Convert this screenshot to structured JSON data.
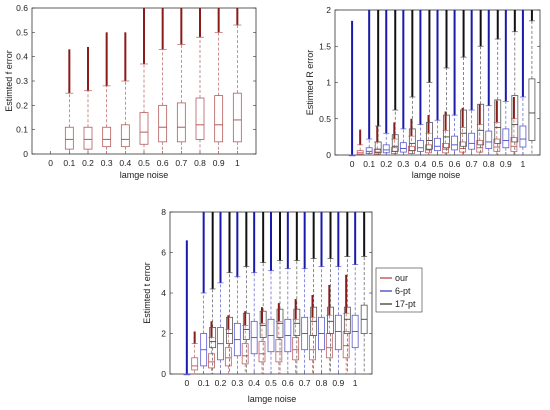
{
  "chart_data": [
    {
      "type": "boxplot",
      "xlabel": "lamge noise",
      "ylabel": "Estimted f error",
      "ylim": [
        0,
        0.6
      ],
      "yticks": [
        0,
        0.1,
        0.2,
        0.3,
        0.4,
        0.5,
        0.6
      ],
      "categories": [
        "0",
        "0.1",
        "0.2",
        "0.3",
        "0.4",
        "0.5",
        "0.6",
        "0.7",
        "0.8",
        "0.9",
        "1"
      ],
      "series": [
        {
          "color": "#b55a5a",
          "outlier_color": "#8b1a1a",
          "boxes": [
            {
              "x": "0.1",
              "q1": 0.02,
              "median": 0.06,
              "q3": 0.11,
              "whisker_low": 0,
              "whisker_high": 0.25,
              "outlier_max": 0.43
            },
            {
              "x": "0.2",
              "q1": 0.02,
              "median": 0.06,
              "q3": 0.11,
              "whisker_low": 0,
              "whisker_high": 0.26,
              "outlier_max": 0.44
            },
            {
              "x": "0.3",
              "q1": 0.03,
              "median": 0.06,
              "q3": 0.11,
              "whisker_low": 0,
              "whisker_high": 0.28,
              "outlier_max": 0.5
            },
            {
              "x": "0.4",
              "q1": 0.03,
              "median": 0.06,
              "q3": 0.12,
              "whisker_low": 0,
              "whisker_high": 0.3,
              "outlier_max": 0.5
            },
            {
              "x": "0.5",
              "q1": 0.04,
              "median": 0.09,
              "q3": 0.17,
              "whisker_low": 0,
              "whisker_high": 0.37,
              "outlier_max": 0.6
            },
            {
              "x": "0.6",
              "q1": 0.05,
              "median": 0.11,
              "q3": 0.2,
              "whisker_low": 0,
              "whisker_high": 0.43,
              "outlier_max": 0.6
            },
            {
              "x": "0.7",
              "q1": 0.05,
              "median": 0.11,
              "q3": 0.21,
              "whisker_low": 0,
              "whisker_high": 0.45,
              "outlier_max": 0.6
            },
            {
              "x": "0.8",
              "q1": 0.06,
              "median": 0.12,
              "q3": 0.23,
              "whisker_low": 0,
              "whisker_high": 0.48,
              "outlier_max": 0.6
            },
            {
              "x": "0.9",
              "q1": 0.05,
              "median": 0.12,
              "q3": 0.24,
              "whisker_low": 0,
              "whisker_high": 0.5,
              "outlier_max": 0.6
            },
            {
              "x": "1",
              "q1": 0.05,
              "median": 0.14,
              "q3": 0.25,
              "whisker_low": 0,
              "whisker_high": 0.53,
              "outlier_max": 0.6
            }
          ]
        }
      ]
    },
    {
      "type": "boxplot",
      "xlabel": "lamge noise",
      "ylabel": "Estimted R error",
      "ylim": [
        0,
        2
      ],
      "yticks": [
        0,
        0.5,
        1,
        1.5,
        2
      ],
      "categories": [
        "0",
        "0.1",
        "0.2",
        "0.3",
        "0.4",
        "0.5",
        "0.6",
        "0.7",
        "0.8",
        "0.9",
        "1"
      ],
      "series": [
        {
          "name": "our",
          "color": "#c06060",
          "outlier_color": "#8b1a1a",
          "boxes": [
            {
              "x": "0.1",
              "q1": 0.01,
              "median": 0.03,
              "q3": 0.06,
              "whisker_low": 0,
              "whisker_high": 0.14,
              "outlier_max": 0.35
            },
            {
              "x": "0.2",
              "q1": 0.01,
              "median": 0.04,
              "q3": 0.08,
              "whisker_low": 0,
              "whisker_high": 0.18,
              "outlier_max": 0.4
            },
            {
              "x": "0.3",
              "q1": 0.02,
              "median": 0.05,
              "q3": 0.1,
              "whisker_low": 0,
              "whisker_high": 0.22,
              "outlier_max": 0.45
            },
            {
              "x": "0.4",
              "q1": 0.02,
              "median": 0.06,
              "q3": 0.12,
              "whisker_low": 0,
              "whisker_high": 0.26,
              "outlier_max": 0.5
            },
            {
              "x": "0.5",
              "q1": 0.03,
              "median": 0.07,
              "q3": 0.14,
              "whisker_low": 0,
              "whisker_high": 0.3,
              "outlier_max": 0.55
            },
            {
              "x": "0.6",
              "q1": 0.03,
              "median": 0.08,
              "q3": 0.16,
              "whisker_low": 0,
              "whisker_high": 0.34,
              "outlier_max": 0.6
            },
            {
              "x": "0.7",
              "q1": 0.04,
              "median": 0.09,
              "q3": 0.18,
              "whisker_low": 0,
              "whisker_high": 0.38,
              "outlier_max": 0.65
            },
            {
              "x": "0.8",
              "q1": 0.04,
              "median": 0.1,
              "q3": 0.2,
              "whisker_low": 0,
              "whisker_high": 0.42,
              "outlier_max": 0.7
            },
            {
              "x": "0.9",
              "q1": 0.05,
              "median": 0.11,
              "q3": 0.22,
              "whisker_low": 0,
              "whisker_high": 0.45,
              "outlier_max": 0.75
            },
            {
              "x": "1",
              "q1": 0.05,
              "median": 0.12,
              "q3": 0.24,
              "whisker_low": 0,
              "whisker_high": 0.5,
              "outlier_max": 0.8
            }
          ]
        },
        {
          "name": "6-pt",
          "color": "#5a5ad0",
          "outlier_color": "#1a1aaa",
          "boxes": [
            {
              "x": "0",
              "q1": 0,
              "median": 0,
              "q3": 0,
              "whisker_low": 0,
              "whisker_high": 0,
              "outlier_max": 1.85
            },
            {
              "x": "0.1",
              "q1": 0.02,
              "median": 0.05,
              "q3": 0.1,
              "whisker_low": 0,
              "whisker_high": 0.22,
              "outlier_max": 2
            },
            {
              "x": "0.2",
              "q1": 0.03,
              "median": 0.07,
              "q3": 0.14,
              "whisker_low": 0,
              "whisker_high": 0.3,
              "outlier_max": 2
            },
            {
              "x": "0.3",
              "q1": 0.04,
              "median": 0.09,
              "q3": 0.17,
              "whisker_low": 0,
              "whisker_high": 0.36,
              "outlier_max": 2
            },
            {
              "x": "0.4",
              "q1": 0.05,
              "median": 0.1,
              "q3": 0.2,
              "whisker_low": 0,
              "whisker_high": 0.42,
              "outlier_max": 2
            },
            {
              "x": "0.5",
              "q1": 0.06,
              "median": 0.12,
              "q3": 0.23,
              "whisker_low": 0,
              "whisker_high": 0.48,
              "outlier_max": 2
            },
            {
              "x": "0.6",
              "q1": 0.07,
              "median": 0.14,
              "q3": 0.26,
              "whisker_low": 0,
              "whisker_high": 0.55,
              "outlier_max": 2
            },
            {
              "x": "0.7",
              "q1": 0.08,
              "median": 0.16,
              "q3": 0.3,
              "whisker_low": 0,
              "whisker_high": 0.62,
              "outlier_max": 2
            },
            {
              "x": "0.8",
              "q1": 0.09,
              "median": 0.18,
              "q3": 0.33,
              "whisker_low": 0,
              "whisker_high": 0.68,
              "outlier_max": 2
            },
            {
              "x": "0.9",
              "q1": 0.1,
              "median": 0.2,
              "q3": 0.36,
              "whisker_low": 0,
              "whisker_high": 0.74,
              "outlier_max": 2
            },
            {
              "x": "1",
              "q1": 0.11,
              "median": 0.22,
              "q3": 0.4,
              "whisker_low": 0,
              "whisker_high": 0.8,
              "outlier_max": 2
            }
          ]
        },
        {
          "name": "17-pt",
          "color": "#555555",
          "outlier_color": "#111111",
          "boxes": [
            {
              "x": "0.1",
              "q1": 0.03,
              "median": 0.08,
              "q3": 0.18,
              "whisker_low": 0,
              "whisker_high": 0.4,
              "outlier_max": 2
            },
            {
              "x": "0.2",
              "q1": 0.05,
              "median": 0.12,
              "q3": 0.28,
              "whisker_low": 0,
              "whisker_high": 0.62,
              "outlier_max": 2
            },
            {
              "x": "0.3",
              "q1": 0.06,
              "median": 0.16,
              "q3": 0.36,
              "whisker_low": 0,
              "whisker_high": 0.8,
              "outlier_max": 2
            },
            {
              "x": "0.4",
              "q1": 0.08,
              "median": 0.2,
              "q3": 0.45,
              "whisker_low": 0,
              "whisker_high": 1,
              "outlier_max": 2
            },
            {
              "x": "0.5",
              "q1": 0.1,
              "median": 0.25,
              "q3": 0.55,
              "whisker_low": 0,
              "whisker_high": 1.2,
              "outlier_max": 2
            },
            {
              "x": "0.6",
              "q1": 0.12,
              "median": 0.3,
              "q3": 0.62,
              "whisker_low": 0,
              "whisker_high": 1.35,
              "outlier_max": 2
            },
            {
              "x": "0.7",
              "q1": 0.14,
              "median": 0.34,
              "q3": 0.7,
              "whisker_low": 0,
              "whisker_high": 1.5,
              "outlier_max": 2
            },
            {
              "x": "0.8",
              "q1": 0.16,
              "median": 0.38,
              "q3": 0.76,
              "whisker_low": 0,
              "whisker_high": 1.6,
              "outlier_max": 2
            },
            {
              "x": "0.9",
              "q1": 0.18,
              "median": 0.42,
              "q3": 0.82,
              "whisker_low": 0,
              "whisker_high": 1.7,
              "outlier_max": 2
            },
            {
              "x": "1",
              "q1": 0.2,
              "median": 0.58,
              "q3": 1.05,
              "whisker_low": 0,
              "whisker_high": 1.85,
              "outlier_max": 2
            }
          ]
        }
      ]
    },
    {
      "type": "boxplot",
      "xlabel": "lamge noise",
      "ylabel": "Estimted t error",
      "ylim": [
        0,
        8
      ],
      "yticks": [
        0,
        2,
        4,
        6,
        8
      ],
      "categories": [
        "0",
        "0.1",
        "0.2",
        "0.3",
        "0.4",
        "0.5",
        "0.6",
        "0.7",
        "0.8",
        "0.9",
        "1"
      ],
      "legend": {
        "position": "right",
        "entries": [
          "our",
          "6-pt",
          "17-pt"
        ]
      },
      "series": [
        {
          "name": "our",
          "color": "#c06060",
          "outlier_color": "#8b1a1a",
          "boxes": [
            {
              "x": "0.1",
              "q1": 0.2,
              "median": 0.4,
              "q3": 0.8,
              "whisker_low": 0,
              "whisker_high": 1.5,
              "outlier_max": 2.1
            },
            {
              "x": "0.2",
              "q1": 0.3,
              "median": 0.6,
              "q3": 1,
              "whisker_low": 0,
              "whisker_high": 1.8,
              "outlier_max": 2.6
            },
            {
              "x": "0.3",
              "q1": 0.4,
              "median": 0.8,
              "q3": 1.3,
              "whisker_low": 0,
              "whisker_high": 2.2,
              "outlier_max": 2.9
            },
            {
              "x": "0.4",
              "q1": 0.5,
              "median": 0.9,
              "q3": 1.5,
              "whisker_low": 0,
              "whisker_high": 2.4,
              "outlier_max": 3.1
            },
            {
              "x": "0.5",
              "q1": 0.6,
              "median": 1,
              "q3": 1.6,
              "whisker_low": 0,
              "whisker_high": 2.5,
              "outlier_max": 3.3
            },
            {
              "x": "0.6",
              "q1": 0.6,
              "median": 1.1,
              "q3": 1.7,
              "whisker_low": 0,
              "whisker_high": 2.6,
              "outlier_max": 3.5
            },
            {
              "x": "0.7",
              "q1": 0.7,
              "median": 1.2,
              "q3": 1.8,
              "whisker_low": 0,
              "whisker_high": 2.7,
              "outlier_max": 3.7
            },
            {
              "x": "0.8",
              "q1": 0.7,
              "median": 1.2,
              "q3": 1.9,
              "whisker_low": 0,
              "whisker_high": 2.8,
              "outlier_max": 3.9
            },
            {
              "x": "0.9",
              "q1": 0.8,
              "median": 1.3,
              "q3": 2,
              "whisker_low": 0,
              "whisker_high": 2.9,
              "outlier_max": 4.4
            },
            {
              "x": "1",
              "q1": 0.8,
              "median": 1.4,
              "q3": 2.1,
              "whisker_low": 0,
              "whisker_high": 3,
              "outlier_max": 4.9
            }
          ]
        },
        {
          "name": "6-pt",
          "color": "#5a5ad0",
          "outlier_color": "#1a1aaa",
          "boxes": [
            {
              "x": "0",
              "q1": 0,
              "median": 0,
              "q3": 0,
              "whisker_low": 0,
              "whisker_high": 0,
              "outlier_max": 6.6
            },
            {
              "x": "0.1",
              "q1": 0.4,
              "median": 1.2,
              "q3": 2,
              "whisker_low": 0,
              "whisker_high": 4,
              "outlier_max": 8
            },
            {
              "x": "0.2",
              "q1": 0.7,
              "median": 1.5,
              "q3": 2.3,
              "whisker_low": 0,
              "whisker_high": 4.5,
              "outlier_max": 8
            },
            {
              "x": "0.3",
              "q1": 0.9,
              "median": 1.7,
              "q3": 2.5,
              "whisker_low": 0,
              "whisker_high": 4.8,
              "outlier_max": 8
            },
            {
              "x": "0.4",
              "q1": 1,
              "median": 1.8,
              "q3": 2.6,
              "whisker_low": 0,
              "whisker_high": 5,
              "outlier_max": 8
            },
            {
              "x": "0.5",
              "q1": 1.1,
              "median": 1.9,
              "q3": 2.7,
              "whisker_low": 0,
              "whisker_high": 5.1,
              "outlier_max": 8
            },
            {
              "x": "0.6",
              "q1": 1.1,
              "median": 1.9,
              "q3": 2.7,
              "whisker_low": 0,
              "whisker_high": 5.2,
              "outlier_max": 8
            },
            {
              "x": "0.7",
              "q1": 1.2,
              "median": 2,
              "q3": 2.8,
              "whisker_low": 0,
              "whisker_high": 5.2,
              "outlier_max": 8
            },
            {
              "x": "0.8",
              "q1": 1.2,
              "median": 2,
              "q3": 2.8,
              "whisker_low": 0,
              "whisker_high": 5.3,
              "outlier_max": 8
            },
            {
              "x": "0.9",
              "q1": 1.2,
              "median": 2.1,
              "q3": 2.9,
              "whisker_low": 0,
              "whisker_high": 5.3,
              "outlier_max": 8
            },
            {
              "x": "1",
              "q1": 1.3,
              "median": 2.1,
              "q3": 2.9,
              "whisker_low": 0,
              "whisker_high": 5.4,
              "outlier_max": 8
            }
          ]
        },
        {
          "name": "17-pt",
          "color": "#555555",
          "outlier_color": "#111111",
          "boxes": [
            {
              "x": "0.1",
              "q1": 1.3,
              "median": 1.6,
              "q3": 2.3,
              "whisker_low": 0,
              "whisker_high": 4.2,
              "outlier_max": 8
            },
            {
              "x": "0.2",
              "q1": 1.5,
              "median": 2,
              "q3": 2.8,
              "whisker_low": 0,
              "whisker_high": 5,
              "outlier_max": 8
            },
            {
              "x": "0.3",
              "q1": 1.7,
              "median": 2.2,
              "q3": 3,
              "whisker_low": 0,
              "whisker_high": 5.3,
              "outlier_max": 8
            },
            {
              "x": "0.4",
              "q1": 1.8,
              "median": 2.4,
              "q3": 3.1,
              "whisker_low": 0,
              "whisker_high": 5.5,
              "outlier_max": 8
            },
            {
              "x": "0.5",
              "q1": 1.8,
              "median": 2.5,
              "q3": 3.2,
              "whisker_low": 0,
              "whisker_high": 5.6,
              "outlier_max": 8
            },
            {
              "x": "0.6",
              "q1": 1.9,
              "median": 2.5,
              "q3": 3.2,
              "whisker_low": 0,
              "whisker_high": 5.6,
              "outlier_max": 8
            },
            {
              "x": "0.7",
              "q1": 1.9,
              "median": 2.6,
              "q3": 3.3,
              "whisker_low": 0,
              "whisker_high": 5.7,
              "outlier_max": 8
            },
            {
              "x": "0.8",
              "q1": 2,
              "median": 2.6,
              "q3": 3.3,
              "whisker_low": 0,
              "whisker_high": 5.7,
              "outlier_max": 8
            },
            {
              "x": "0.9",
              "q1": 2,
              "median": 2.7,
              "q3": 3.3,
              "whisker_low": 0,
              "whisker_high": 5.8,
              "outlier_max": 8
            },
            {
              "x": "1",
              "q1": 2,
              "median": 2.7,
              "q3": 3.4,
              "whisker_low": 0,
              "whisker_high": 5.8,
              "outlier_max": 8
            }
          ]
        }
      ]
    }
  ]
}
